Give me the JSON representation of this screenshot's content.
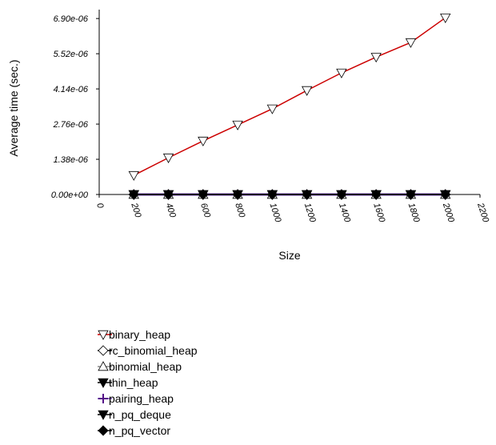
{
  "chart_data": {
    "type": "line",
    "ylabel": "Average time (sec.)",
    "xlabel": "Size",
    "x": [
      200,
      400,
      600,
      800,
      1000,
      1200,
      1400,
      1600,
      1800,
      2000
    ],
    "xlim": [
      0,
      2200
    ],
    "xticks": [
      0,
      200,
      400,
      600,
      800,
      1000,
      1200,
      1400,
      1600,
      1800,
      2000,
      2200
    ],
    "ylim": [
      0,
      7.25e-06
    ],
    "yticks": [
      {
        "value": 0,
        "label": "0.00e+00"
      },
      {
        "value": 1.38e-06,
        "label": "1.38e-06"
      },
      {
        "value": 2.76e-06,
        "label": "2.76e-06"
      },
      {
        "value": 4.14e-06,
        "label": "4.14e-06"
      },
      {
        "value": 5.52e-06,
        "label": "5.52e-06"
      },
      {
        "value": 6.9e-06,
        "label": "6.90e-06"
      }
    ],
    "series": [
      {
        "name": "binary_heap",
        "color": "#cc0000",
        "marker": "triangle-down",
        "marker_fill": "#ffffff",
        "values": [
          7.5e-07,
          1.44e-06,
          2.1e-06,
          2.73e-06,
          3.36e-06,
          4.08e-06,
          4.77e-06,
          5.39e-06,
          5.96e-06,
          6.93e-06
        ]
      },
      {
        "name": "rc_binomial_heap",
        "color": "#000000",
        "marker": "diamond",
        "marker_fill": "#ffffff",
        "values": [
          0,
          0,
          0,
          0,
          0,
          0,
          0,
          0,
          0,
          0
        ]
      },
      {
        "name": "binomial_heap",
        "color": "#888888",
        "marker": "triangle-up",
        "marker_fill": "#ffffff",
        "values": [
          0,
          0,
          0,
          0,
          0,
          0,
          0,
          0,
          0,
          0
        ]
      },
      {
        "name": "thin_heap",
        "color": "#000000",
        "marker": "triangle-down",
        "marker_fill": "#000000",
        "values": [
          0,
          0,
          0,
          0,
          0,
          0,
          0,
          0,
          0,
          0
        ]
      },
      {
        "name": "pairing_heap",
        "color": "#7744bb",
        "marker": "plus",
        "marker_fill": "#551188",
        "values": [
          0,
          0,
          0,
          0,
          0,
          0,
          0,
          0,
          0,
          0
        ]
      },
      {
        "name": "n_pq_deque",
        "color": "#000000",
        "marker": "triangle-down",
        "marker_fill": "#000000",
        "values": [
          0,
          0,
          0,
          0,
          0,
          0,
          0,
          0,
          0,
          0
        ]
      },
      {
        "name": "n_pq_vector",
        "color": "#000000",
        "marker": "diamond",
        "marker_fill": "#000000",
        "values": [
          0,
          0,
          0,
          0,
          0,
          0,
          0,
          0,
          0,
          0
        ]
      }
    ]
  }
}
